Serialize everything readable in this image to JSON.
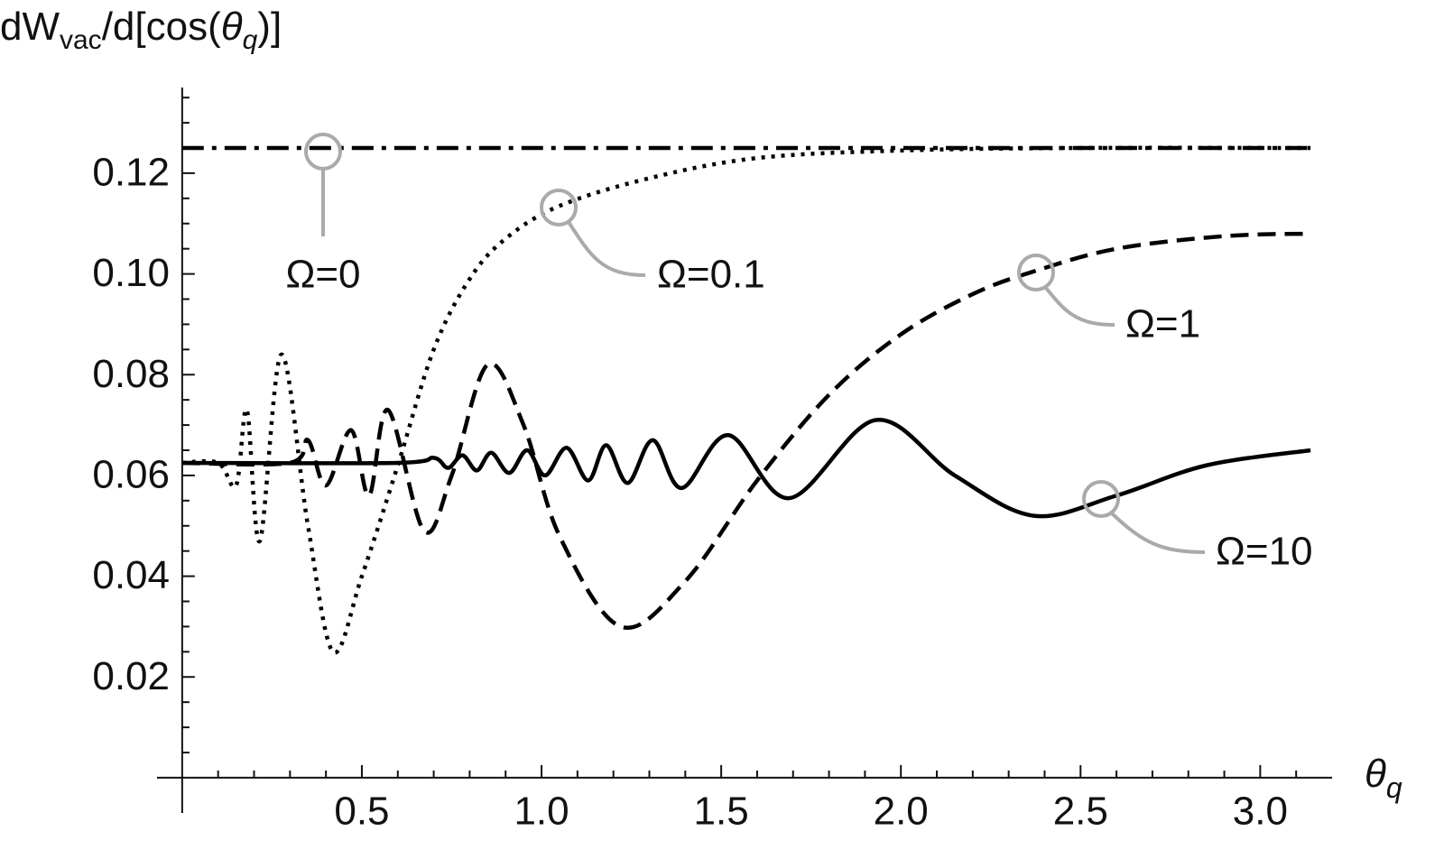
{
  "chart_data": {
    "type": "line",
    "y_label": [
      "dW",
      "vac",
      "/d[cos(",
      "θ",
      "q",
      ")]"
    ],
    "x_label": [
      "θ",
      "q"
    ],
    "xlim": [
      -0.07,
      3.2
    ],
    "ylim": [
      -0.007,
      0.137
    ],
    "xticks": [
      0.5,
      {
        "value": 1,
        "label": "1.0"
      },
      1.5,
      {
        "value": 2,
        "label": "2.0"
      },
      2.5,
      {
        "value": 3,
        "label": "3.0"
      }
    ],
    "yticks": [
      0.02,
      0.04,
      0.06,
      0.08,
      {
        "value": 0.1,
        "label": "0.10"
      },
      0.12
    ],
    "xminor_ticks": [
      0.1,
      0.2,
      0.3,
      0.4,
      0.6,
      0.7,
      0.8,
      0.9,
      1.1,
      1.2,
      1.3,
      1.4,
      1.6,
      1.7,
      1.8,
      1.9,
      2.1,
      2.2,
      2.3,
      2.4,
      2.6,
      2.7,
      2.8,
      2.9,
      3.1
    ],
    "yminor_ticks": [
      0.005,
      0.01,
      0.015,
      0.025,
      0.03,
      0.035,
      0.045,
      0.05,
      0.055,
      0.065,
      0.07,
      0.075,
      0.085,
      0.09,
      0.095,
      0.105,
      0.11,
      0.115,
      0.125,
      0.13,
      0.135
    ],
    "series": [
      {
        "name": "Ω=0",
        "color": "#000000",
        "dash": "dashdot",
        "x": [
          0,
          3.14
        ],
        "values": [
          0.125,
          0.125
        ]
      },
      {
        "name": "Ω=0.1",
        "color": "#000000",
        "dash": "dotted",
        "x": [
          0,
          0.1,
          0.15,
          0.18,
          0.216,
          0.276,
          0.35,
          0.42,
          0.5,
          0.6,
          0.7,
          0.8,
          0.9,
          1.05,
          1.3,
          1.6,
          2.0,
          2.5,
          3.14
        ],
        "values": [
          0.0625,
          0.0625,
          0.058,
          0.073,
          0.047,
          0.084,
          0.05,
          0.025,
          0.04,
          0.062,
          0.085,
          0.099,
          0.107,
          0.1135,
          0.119,
          0.123,
          0.1245,
          0.125,
          0.125
        ]
      },
      {
        "name": "Ω=1",
        "color": "#000000",
        "dash": "dashed",
        "x": [
          0,
          0.3,
          0.35,
          0.4,
          0.47,
          0.52,
          0.573,
          0.673,
          0.75,
          0.85,
          0.95,
          1.05,
          1.22,
          1.4,
          1.6,
          1.8,
          2.0,
          2.2,
          2.37,
          2.6,
          2.9,
          3.14
        ],
        "values": [
          0.0625,
          0.0625,
          0.067,
          0.058,
          0.069,
          0.056,
          0.073,
          0.049,
          0.06,
          0.082,
          0.07,
          0.048,
          0.03,
          0.039,
          0.059,
          0.076,
          0.088,
          0.096,
          0.1005,
          0.105,
          0.1075,
          0.108
        ]
      },
      {
        "name": "Ω=10",
        "color": "#000000",
        "dash": "solid",
        "x": [
          0,
          0.6,
          0.7,
          0.74,
          0.78,
          0.82,
          0.86,
          0.91,
          0.96,
          1.01,
          1.07,
          1.13,
          1.18,
          1.24,
          1.31,
          1.39,
          1.52,
          1.69,
          1.93,
          2.15,
          2.37,
          2.6,
          2.85,
          3.14
        ],
        "values": [
          0.0625,
          0.0625,
          0.0635,
          0.0615,
          0.064,
          0.061,
          0.0645,
          0.0605,
          0.065,
          0.06,
          0.0655,
          0.059,
          0.066,
          0.0585,
          0.067,
          0.0575,
          0.068,
          0.0555,
          0.071,
          0.06,
          0.052,
          0.056,
          0.062,
          0.065
        ]
      }
    ]
  }
}
